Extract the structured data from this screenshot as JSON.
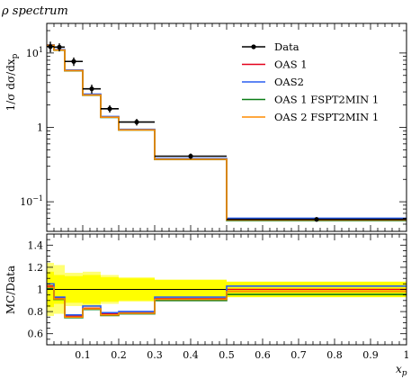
{
  "chart_data": [
    {
      "type": "histogram-step",
      "panel": "main",
      "title": "ρ spectrum",
      "xlabel": "",
      "ylabel": "1/σ dσ/dx_p",
      "yscale": "log",
      "xlim": [
        0,
        1.0
      ],
      "ylim": [
        0.04,
        25
      ],
      "yticks": [
        {
          "value": 0.1,
          "label": "10^−1"
        },
        {
          "value": 1,
          "label": "1"
        },
        {
          "value": 10,
          "label": "10^1"
        }
      ],
      "bin_edges": [
        0.0,
        0.02,
        0.05,
        0.1,
        0.15,
        0.2,
        0.3,
        0.5,
        1.0
      ],
      "data": {
        "name": "Data",
        "points": [
          {
            "x": 0.01,
            "y": 12.2,
            "xerr": 0.01,
            "yerr": 2.0
          },
          {
            "x": 0.035,
            "y": 12.0,
            "xerr": 0.015,
            "yerr": 1.5
          },
          {
            "x": 0.075,
            "y": 7.7,
            "xerr": 0.025,
            "yerr": 1.0
          },
          {
            "x": 0.125,
            "y": 3.3,
            "xerr": 0.025,
            "yerr": 0.45
          },
          {
            "x": 0.175,
            "y": 1.78,
            "xerr": 0.025,
            "yerr": 0.2
          },
          {
            "x": 0.25,
            "y": 1.18,
            "xerr": 0.05,
            "yerr": 0.12
          },
          {
            "x": 0.4,
            "y": 0.41,
            "xerr": 0.1,
            "yerr": 0.035
          },
          {
            "x": 0.75,
            "y": 0.058,
            "xerr": 0.25,
            "yerr": 0.004
          }
        ]
      },
      "series": [
        {
          "name": "OAS 1",
          "color": "#e4001b",
          "values": [
            12.8,
            11.0,
            5.8,
            2.75,
            1.38,
            0.93,
            0.375,
            0.058
          ]
        },
        {
          "name": "OAS2",
          "color": "#2a5ef0",
          "values": [
            12.9,
            11.1,
            5.9,
            2.8,
            1.4,
            0.94,
            0.38,
            0.06
          ]
        },
        {
          "name": "OAS 1 FSPT2MIN 1",
          "color": "#0a7d16",
          "values": [
            12.7,
            10.9,
            5.75,
            2.7,
            1.36,
            0.92,
            0.37,
            0.056
          ]
        },
        {
          "name": "OAS 2 FSPT2MIN 1",
          "color": "#ff8c00",
          "values": [
            12.75,
            10.95,
            5.8,
            2.72,
            1.37,
            0.925,
            0.372,
            0.057
          ]
        }
      ],
      "legend_position": "top-right"
    },
    {
      "type": "ratio-band",
      "panel": "ratio",
      "xlabel": "x_p",
      "ylabel": "MC/Data",
      "xlim": [
        0,
        1.0
      ],
      "ylim": [
        0.5,
        1.5
      ],
      "xticks": [
        0.1,
        0.2,
        0.3,
        0.4,
        0.5,
        0.6,
        0.7,
        0.8,
        0.9,
        1.0
      ],
      "yticks": [
        0.6,
        0.8,
        1,
        1.2,
        1.4
      ],
      "bin_edges": [
        0.0,
        0.02,
        0.05,
        0.1,
        0.15,
        0.2,
        0.3,
        0.5,
        1.0
      ],
      "band_color": "#ffff00",
      "band_outer": [
        0.24,
        0.22,
        0.15,
        0.16,
        0.13,
        0.11,
        0.09,
        0.07
      ],
      "band_inner": [
        0.16,
        0.13,
        0.12,
        0.13,
        0.11,
        0.1,
        0.085,
        0.07
      ],
      "series": [
        {
          "name": "OAS 1",
          "color": "#e4001b",
          "values": [
            1.03,
            0.92,
            0.76,
            0.83,
            0.78,
            0.79,
            0.915,
            1.0
          ]
        },
        {
          "name": "OAS2",
          "color": "#2a5ef0",
          "values": [
            1.05,
            0.93,
            0.77,
            0.85,
            0.79,
            0.8,
            0.93,
            1.03
          ]
        },
        {
          "name": "OAS 1 FSPT2MIN 1",
          "color": "#0a7d16",
          "values": [
            1.01,
            0.91,
            0.745,
            0.82,
            0.765,
            0.78,
            0.9,
            0.955
          ]
        },
        {
          "name": "OAS 2 FSPT2MIN 1",
          "color": "#ff8c00",
          "values": [
            1.02,
            0.915,
            0.75,
            0.825,
            0.77,
            0.785,
            0.91,
            0.98
          ]
        }
      ]
    }
  ]
}
